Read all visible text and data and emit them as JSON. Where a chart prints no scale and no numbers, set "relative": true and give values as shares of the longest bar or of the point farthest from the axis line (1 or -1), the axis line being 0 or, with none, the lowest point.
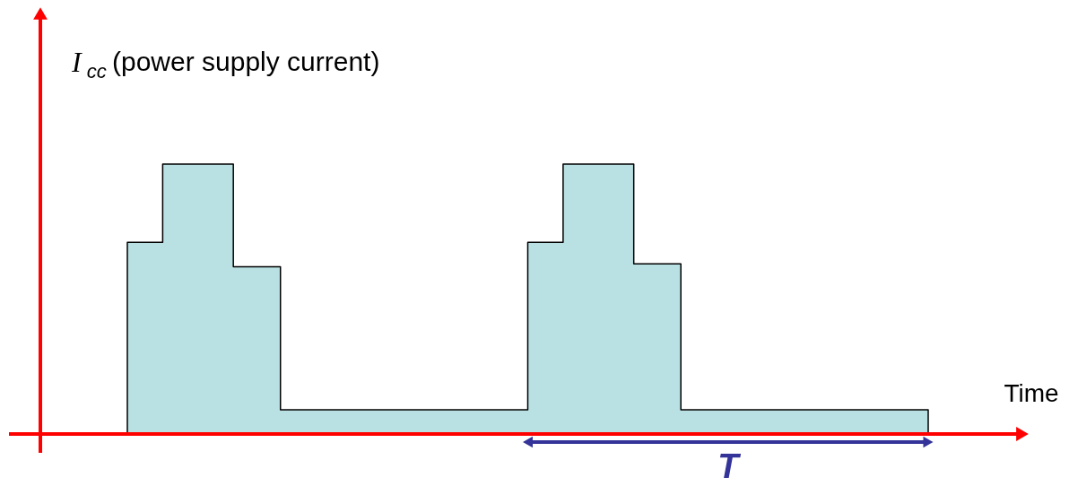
{
  "chart_data": {
    "type": "area",
    "relative": true,
    "ylabel": "I$_{cc}$ (power supply current)",
    "xlabel": "Time",
    "categories": [
      null,
      null,
      null,
      null,
      null,
      null,
      null,
      null,
      null,
      null,
      null,
      null,
      null,
      null,
      null,
      null,
      null,
      null,
      null,
      null,
      null,
      null,
      null,
      null,
      null,
      null,
      null,
      null,
      null,
      null,
      null,
      null,
      null,
      null,
      null,
      null,
      null,
      null,
      null,
      null,
      null,
      null,
      null,
      null,
      null,
      null,
      null,
      null,
      null,
      null,
      null,
      null,
      null,
      null,
      null,
      null,
      null,
      null,
      null,
      null,
      null,
      null,
      null,
      null,
      null,
      null,
      null,
      null,
      null
    ],
    "series": [
      {
        "color": "#b9e0e2",
        "values": [
          0.71,
          0.71,
          0.71,
          1.0,
          1.0,
          1.0,
          1.0,
          1.0,
          1.0,
          0.62,
          0.62,
          0.62,
          0.62,
          0.09,
          0.09,
          0.09,
          0.09,
          0.09,
          0.09,
          0.09,
          0.09,
          0.09,
          0.09,
          0.09,
          0.09,
          0.09,
          0.09,
          0.09,
          0.09,
          0.09,
          0.09,
          0.09,
          0.09,
          0.09,
          0.71,
          0.71,
          0.71,
          1.0,
          1.0,
          1.0,
          1.0,
          1.0,
          1.0,
          0.63,
          0.63,
          0.63,
          0.63,
          0.09,
          0.09,
          0.09,
          0.09,
          0.09,
          0.09,
          0.09,
          0.09,
          0.09,
          0.09,
          0.09,
          0.09,
          0.09,
          0.09,
          0.09,
          0.09,
          0.09,
          0.09,
          0.09,
          0.09,
          0.09,
          0.09
        ]
      }
    ],
    "annotations": [
      "T"
    ]
  }
}
